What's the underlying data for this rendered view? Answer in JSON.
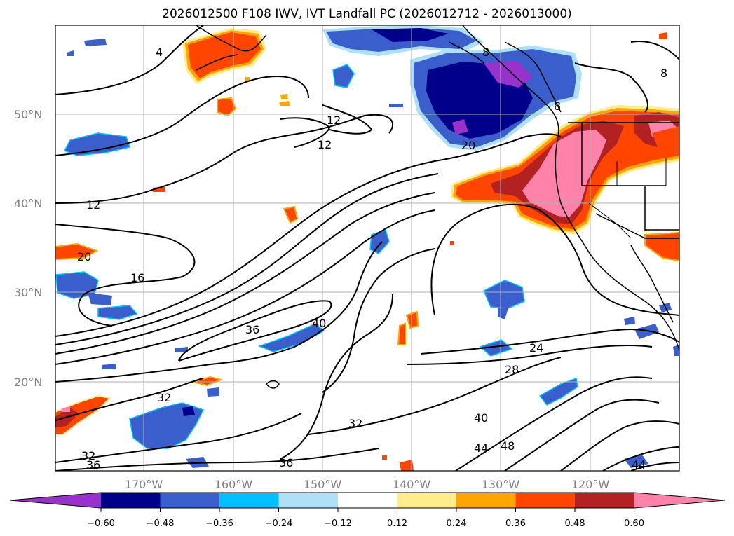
{
  "title": "2026012500 F108 IWV, IVT Landfall PC (2026012712 - 2026013000)",
  "map": {
    "lat_labels": [
      "50°N",
      "40°N",
      "30°N",
      "20°N"
    ],
    "lon_labels": [
      "170°W",
      "160°W",
      "150°W",
      "140°W",
      "130°W",
      "120°W"
    ],
    "contour_labels": [
      "4",
      "8",
      "8",
      "8",
      "12",
      "12",
      "12",
      "16",
      "20",
      "20",
      "24",
      "28",
      "32",
      "32",
      "32",
      "36",
      "36",
      "36",
      "40",
      "40",
      "44",
      "44",
      "48"
    ]
  },
  "colorbar": {
    "ticks": [
      "−0.60",
      "−0.48",
      "−0.36",
      "−0.24",
      "−0.12",
      "0.12",
      "0.24",
      "0.36",
      "0.48",
      "0.60"
    ],
    "colors": [
      "#9932cc",
      "#00008b",
      "#3a5fcd",
      "#00bfff",
      "#afe0f8",
      "#ffffff",
      "#ffec8b",
      "#ffa500",
      "#ff4500",
      "#b22222",
      "#ff82ab"
    ]
  }
}
